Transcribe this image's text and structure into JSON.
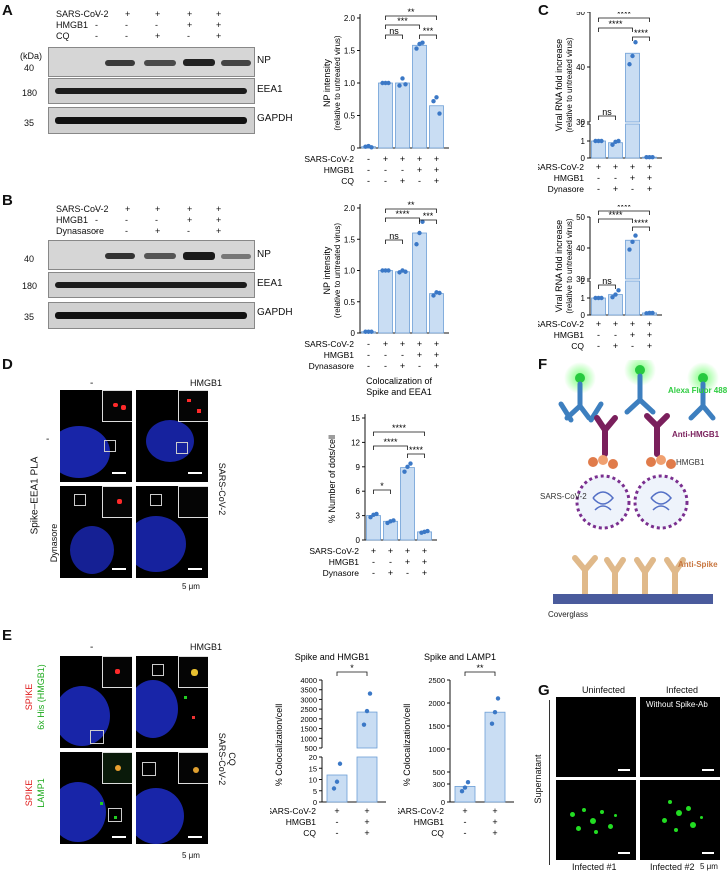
{
  "panels": {
    "A": {
      "letter": "A",
      "treatment_rows": [
        "SARS-CoV-2",
        "HMGB1",
        "CQ"
      ],
      "treatment_signs": [
        [
          "-",
          "+",
          "+",
          "+",
          "+"
        ],
        [
          "-",
          "-",
          "-",
          "+",
          "+"
        ],
        [
          "-",
          "-",
          "+",
          "-",
          "+"
        ]
      ],
      "kda_label": "(kDa)",
      "markers": [
        "40",
        "180",
        "35"
      ],
      "blots": [
        "NP",
        "EEA1",
        "GAPDH"
      ],
      "chart_data": {
        "type": "bar",
        "ylabel": "NP intensity",
        "ylabel2": "(relative to untreated virus)",
        "ylim": [
          0,
          2
        ],
        "yticks": [
          "0",
          "0.5",
          "1.0",
          "1.5",
          "2.0"
        ],
        "values": [
          0.02,
          1.0,
          1.0,
          1.58,
          0.65
        ],
        "points": [
          [
            0.02,
            0.03,
            0.01
          ],
          [
            1.0,
            1.0,
            1.0
          ],
          [
            0.96,
            1.07,
            0.98
          ],
          [
            1.53,
            1.6,
            1.62
          ],
          [
            0.72,
            0.78,
            0.53
          ]
        ],
        "row_labels": [
          "SARS-CoV-2",
          "HMGB1",
          "CQ"
        ],
        "signs": [
          [
            "-",
            "+",
            "+",
            "+",
            "+"
          ],
          [
            "-",
            "-",
            "-",
            "+",
            "+"
          ],
          [
            "-",
            "-",
            "+",
            "-",
            "+"
          ]
        ],
        "significance": [
          {
            "from": 1,
            "to": 2,
            "label": "ns"
          },
          {
            "from": 1,
            "to": 3,
            "label": "***"
          },
          {
            "from": 1,
            "to": 4,
            "label": "**"
          },
          {
            "from": 3,
            "to": 4,
            "label": "***"
          }
        ]
      }
    },
    "B": {
      "letter": "B",
      "treatment_rows": [
        "SARS-CoV-2",
        "HMGB1",
        "Dynasasore"
      ],
      "treatment_signs": [
        [
          "-",
          "+",
          "+",
          "+",
          "+"
        ],
        [
          "-",
          "-",
          "-",
          "+",
          "+"
        ],
        [
          "-",
          "-",
          "+",
          "-",
          "+"
        ]
      ],
      "markers": [
        "40",
        "180",
        "35"
      ],
      "blots": [
        "NP",
        "EEA1",
        "GAPDH"
      ],
      "chart_data": {
        "type": "bar",
        "ylabel": "NP intensity",
        "ylabel2": "(relative to untreated virus)",
        "ylim": [
          0,
          2
        ],
        "yticks": [
          "0",
          "0.5",
          "1.0",
          "1.5",
          "2.0"
        ],
        "values": [
          0.02,
          1.0,
          0.98,
          1.6,
          0.63
        ],
        "points": [
          [
            0.02,
            0.02,
            0.02
          ],
          [
            1.0,
            1.0,
            1.0
          ],
          [
            0.97,
            1.0,
            0.98
          ],
          [
            1.42,
            1.6,
            1.78
          ],
          [
            0.6,
            0.65,
            0.64
          ]
        ],
        "row_labels": [
          "SARS-CoV-2",
          "HMGB1",
          "Dynasasore"
        ],
        "signs": [
          [
            "-",
            "+",
            "+",
            "+",
            "+"
          ],
          [
            "-",
            "-",
            "-",
            "+",
            "+"
          ],
          [
            "-",
            "-",
            "+",
            "-",
            "+"
          ]
        ],
        "significance": [
          {
            "from": 1,
            "to": 2,
            "label": "ns"
          },
          {
            "from": 1,
            "to": 3,
            "label": "****"
          },
          {
            "from": 1,
            "to": 4,
            "label": "**"
          },
          {
            "from": 3,
            "to": 4,
            "label": "***"
          }
        ]
      }
    },
    "C": {
      "letter": "C",
      "charts": [
        {
          "type": "bar",
          "ylabel": "Viral RNA fold increase",
          "ylabel2": "(relative to untreated virus)",
          "yticks_low": [
            "0",
            "1",
            "2"
          ],
          "yticks_high": [
            "30",
            "40",
            "50"
          ],
          "values": [
            1.0,
            0.9,
            42.5,
            0.05
          ],
          "points": [
            [
              1.0,
              1.0,
              1.0
            ],
            [
              0.78,
              0.95,
              1.0
            ],
            [
              40.5,
              42.0,
              44.5
            ],
            [
              0.05,
              0.05,
              0.05
            ]
          ],
          "row_labels": [
            "SARS-CoV-2",
            "HMGB1",
            "Dynasore"
          ],
          "signs": [
            [
              "+",
              "+",
              "+",
              "+"
            ],
            [
              "-",
              "-",
              "+",
              "+"
            ],
            [
              "-",
              "+",
              "-",
              "+"
            ]
          ],
          "significance": [
            {
              "from": 0,
              "to": 1,
              "label": "ns"
            },
            {
              "from": 0,
              "to": 2,
              "label": "****"
            },
            {
              "from": 0,
              "to": 3,
              "label": "****"
            },
            {
              "from": 2,
              "to": 3,
              "label": "****"
            }
          ]
        },
        {
          "type": "bar",
          "ylabel": "Viral RNA fold increase",
          "ylabel2": "(relative to untreated virus)",
          "yticks_low": [
            "0",
            "1",
            "2"
          ],
          "yticks_high": [
            "30",
            "40",
            "50"
          ],
          "values": [
            1.0,
            1.2,
            42.5,
            0.12
          ],
          "points": [
            [
              1.0,
              1.0,
              1.0
            ],
            [
              1.05,
              1.2,
              1.45
            ],
            [
              39.5,
              42.0,
              44.0
            ],
            [
              0.1,
              0.12,
              0.12
            ]
          ],
          "row_labels": [
            "SARS-CoV-2",
            "HMGB1",
            "CQ"
          ],
          "signs": [
            [
              "+",
              "+",
              "+",
              "+"
            ],
            [
              "-",
              "-",
              "+",
              "+"
            ],
            [
              "-",
              "+",
              "-",
              "+"
            ]
          ],
          "significance": [
            {
              "from": 0,
              "to": 1,
              "label": "ns"
            },
            {
              "from": 0,
              "to": 2,
              "label": "****"
            },
            {
              "from": 0,
              "to": 3,
              "label": "****"
            },
            {
              "from": 2,
              "to": 3,
              "label": "****"
            }
          ]
        }
      ]
    },
    "D": {
      "letter": "D",
      "col_minus": "-",
      "col_hmgb1": "HMGB1",
      "side_label": "Spike–EEA1 PLA",
      "row_minus": "-",
      "row_dyn": "Dynasore",
      "right_label": "SARS-CoV-2",
      "scale": "5 μm",
      "chart_data": {
        "type": "bar",
        "title": "Colocalization of",
        "title2": "Spike and EEA1",
        "ylabel": "% Number of dots/cell",
        "ylim": [
          0,
          15
        ],
        "yticks": [
          "0",
          "3",
          "6",
          "9",
          "12",
          "15"
        ],
        "values": [
          3.0,
          2.3,
          8.9,
          1.0
        ],
        "points": [
          [
            2.8,
            3.1,
            3.2
          ],
          [
            2.1,
            2.3,
            2.4
          ],
          [
            8.4,
            9.0,
            9.4
          ],
          [
            0.9,
            1.0,
            1.1
          ]
        ],
        "row_labels": [
          "SARS-CoV-2",
          "HMGB1",
          "Dynasore"
        ],
        "signs": [
          [
            "+",
            "+",
            "+",
            "+"
          ],
          [
            "-",
            "-",
            "+",
            "+"
          ],
          [
            "-",
            "+",
            "-",
            "+"
          ]
        ],
        "significance": [
          {
            "from": 0,
            "to": 1,
            "label": "*"
          },
          {
            "from": 0,
            "to": 2,
            "label": "****"
          },
          {
            "from": 0,
            "to": 3,
            "label": "****"
          },
          {
            "from": 2,
            "to": 3,
            "label": "****"
          }
        ]
      }
    },
    "E": {
      "letter": "E",
      "col_minus": "-",
      "col_hmgb1": "HMGB1",
      "row1_a": "SPIKE",
      "row1_b": "6x His (HMGB1)",
      "row2_a": "SPIKE",
      "row2_b": "LAMP1",
      "right_label1": "SARS-CoV-2",
      "right_label2": "CQ",
      "scale": "5 μm",
      "charts": [
        {
          "type": "bar",
          "title": "Spike and HMGB1",
          "ylabel": "% Colocalization/cell",
          "yticks_low": [
            "0",
            "5",
            "10",
            "15",
            "20"
          ],
          "yticks_high": [
            "500",
            "1000",
            "1500",
            "2000",
            "2500",
            "3000",
            "3500",
            "4000"
          ],
          "values": [
            12,
            2350
          ],
          "points": [
            [
              6,
              9,
              17
            ],
            [
              1700,
              2400,
              3300
            ]
          ],
          "row_labels": [
            "SARS-CoV-2",
            "HMGB1",
            "CQ"
          ],
          "signs": [
            [
              "+",
              "+"
            ],
            [
              "-",
              "+"
            ],
            [
              "-",
              "+"
            ]
          ],
          "significance": [
            {
              "from": 0,
              "to": 1,
              "label": "*"
            }
          ]
        },
        {
          "type": "bar",
          "title": "Spike and LAMP1",
          "ylabel": "% Colocalization/cell",
          "yticks": [
            "0",
            "300",
            "500",
            "1000",
            "1500",
            "2000",
            "2500"
          ],
          "values": [
            260,
            1800
          ],
          "points": [
            [
              180,
              240,
              330
            ],
            [
              1550,
              1800,
              2100
            ]
          ],
          "row_labels": [
            "SARS-CoV-2",
            "HMGB1",
            "CQ"
          ],
          "signs": [
            [
              "+",
              "+"
            ],
            [
              "-",
              "+"
            ],
            [
              "-",
              "+"
            ]
          ],
          "significance": [
            {
              "from": 0,
              "to": 1,
              "label": "**"
            }
          ]
        }
      ]
    },
    "F": {
      "letter": "F",
      "labels": {
        "alexa": "Alexa Fluor 488",
        "anti_hmgb1": "Anti-HMGB1",
        "hmgb1": "HMGB1",
        "virus": "SARS-CoV-2",
        "anti_spike": "Anti-Spike",
        "coverglass": "Coverglass"
      }
    },
    "G": {
      "letter": "G",
      "col1": "Uninfected",
      "col2": "Infected",
      "col2_sub": "Without Spike-Ab",
      "side": "Supernatant",
      "bottom1": "Infected #1",
      "bottom2": "Infected #2",
      "scale": "5 μm"
    }
  },
  "colors": {
    "bar": "#c9ddf3",
    "bar_edge": "#6d9fd6",
    "dot": "#3b78c6",
    "nucleus": "#1f2fd0",
    "green": "#22dd22",
    "red": "#ff2a2a",
    "alexa_text": "#2ecc40",
    "purple": "#7a1f5c",
    "orange_text": "#c8763f"
  }
}
